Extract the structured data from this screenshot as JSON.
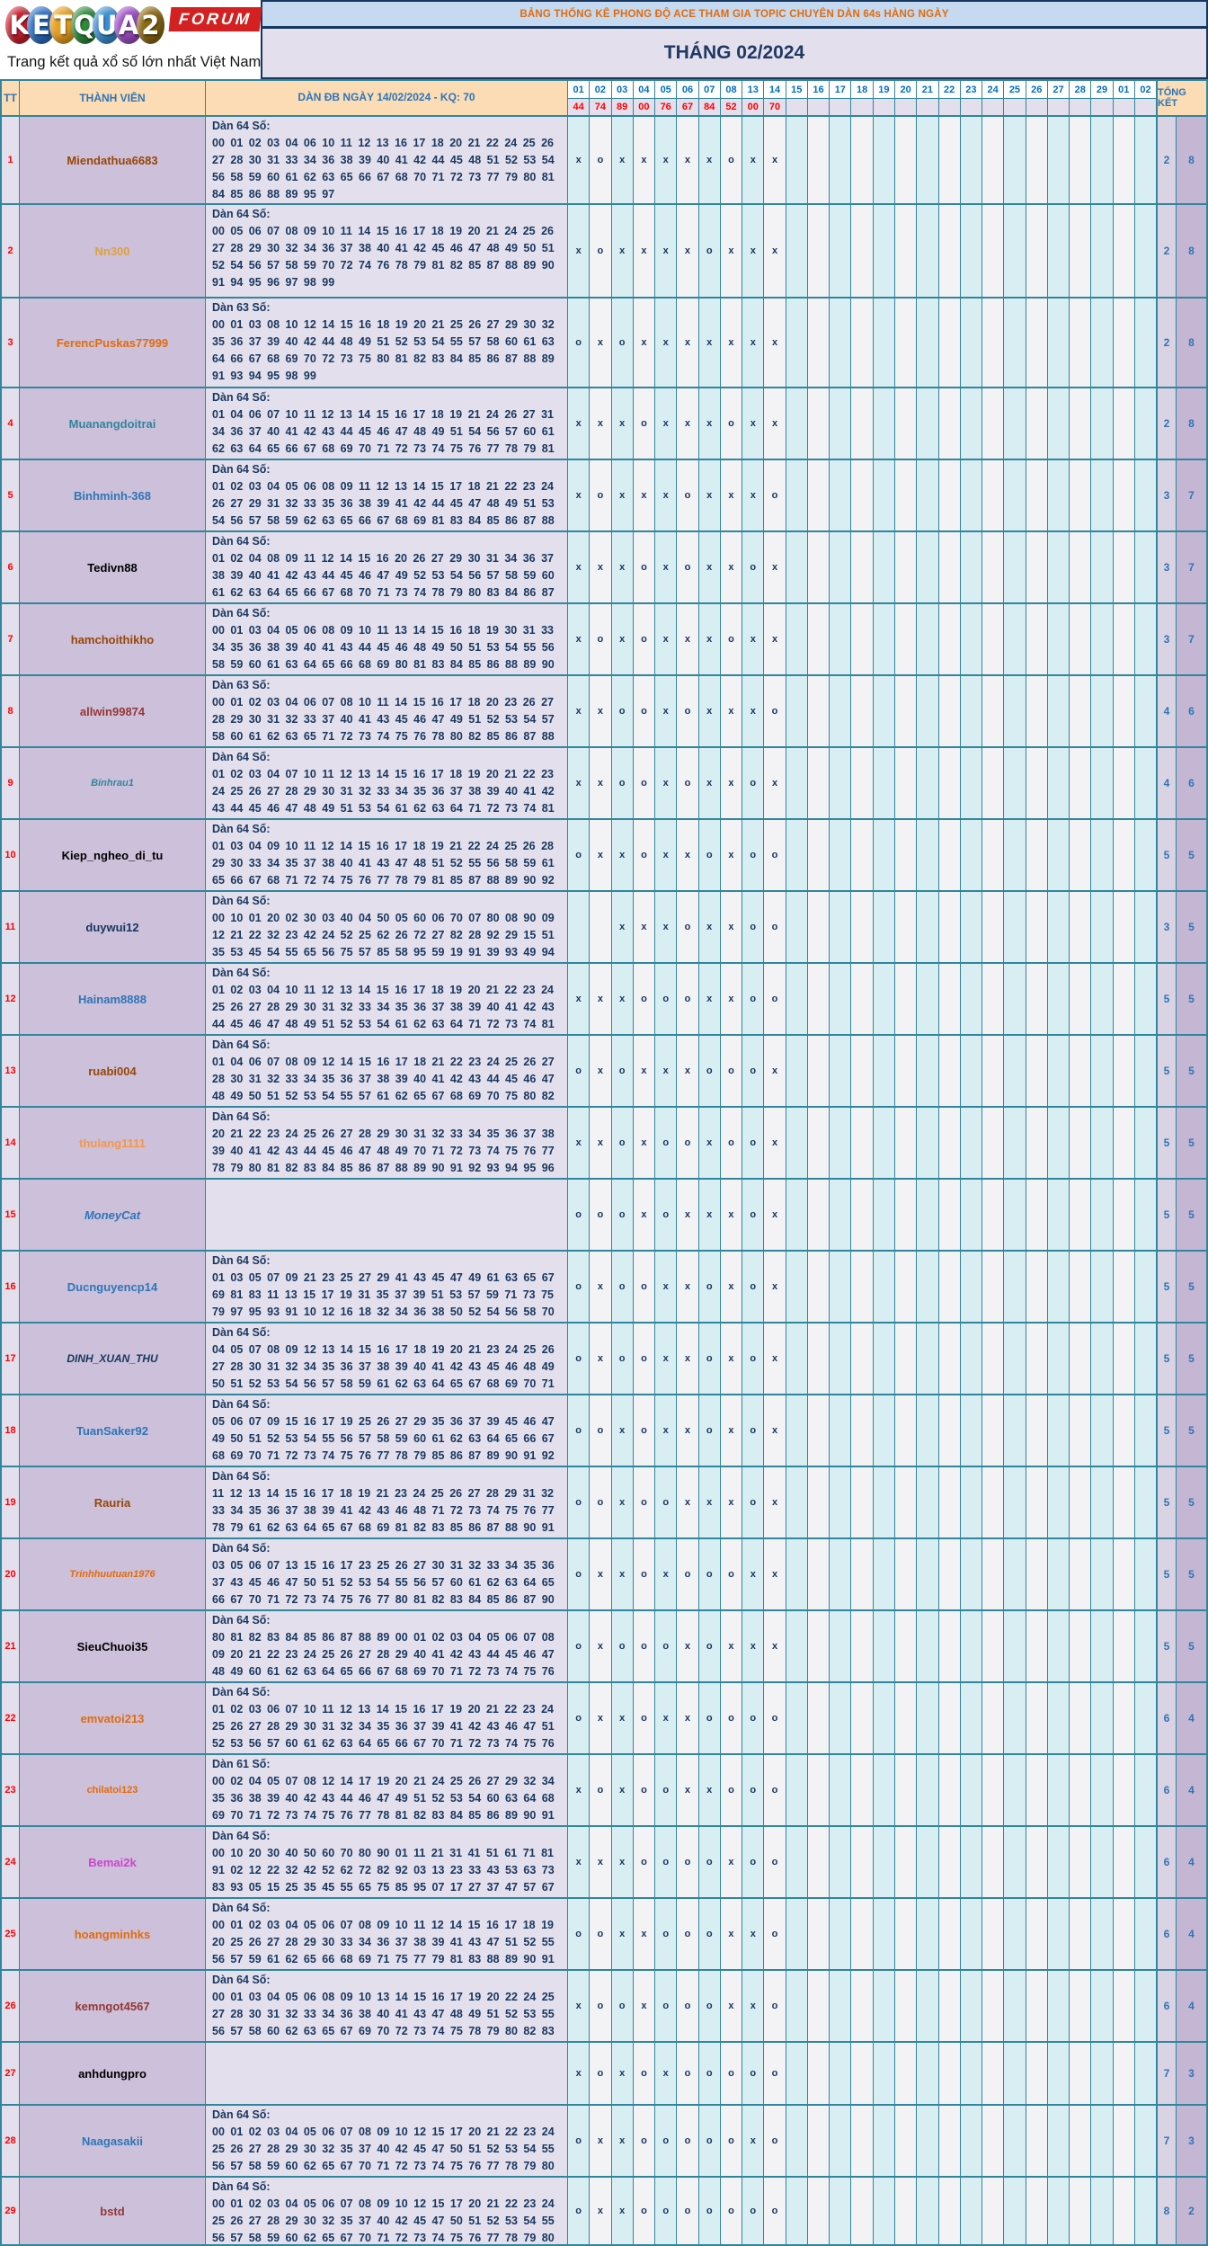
{
  "logo": {
    "letters": [
      {
        "ch": "K",
        "color": "#C8202E"
      },
      {
        "ch": "E",
        "color": "#2D6FC4"
      },
      {
        "ch": "T",
        "color": "#E8A020"
      },
      {
        "ch": "Q",
        "color": "#2E8B3A"
      },
      {
        "ch": "U",
        "color": "#3A8FD4"
      },
      {
        "ch": "A",
        "color": "#9C4FC4"
      },
      {
        "ch": "2",
        "color": "#8B6914"
      }
    ],
    "forum": "FORUM",
    "tagline": "Trang kết quả xổ số lớn nhất Việt Nam"
  },
  "header": {
    "title": "BẢNG THỐNG KÊ PHONG ĐỘ ACE THAM GIA TOPIC CHUYÊN DÀN 64s HÀNG NGÀY",
    "month": "THÁNG 02/2024"
  },
  "table": {
    "col_tt": "TT",
    "col_member": "THÀNH VIÊN",
    "col_dan": "DÀN ĐB NGÀY 14/02/2024 - KQ: 70",
    "col_total": "TỔNG KẾT",
    "days": [
      "01",
      "02",
      "03",
      "04",
      "05",
      "06",
      "07",
      "08",
      "13",
      "14",
      "15",
      "16",
      "17",
      "18",
      "19",
      "20",
      "21",
      "22",
      "23",
      "24",
      "25",
      "26",
      "27",
      "28",
      "29",
      "01",
      "02"
    ],
    "results": [
      "44",
      "74",
      "89",
      "00",
      "76",
      "67",
      "84",
      "52",
      "00",
      "70"
    ],
    "colors": {
      "grid": "#31859C",
      "navy": "#17375E",
      "title_bg": "#C5D9F1",
      "title_text": "#E26B0A",
      "month_bg": "#E4DFEC",
      "header_bg": "#FBDCB5",
      "member_bg": "#CCC0DA",
      "dan_bg": "#E4DFEC",
      "day_even_bg": "#D9EEF3",
      "day_odd_bg": "#F3F2F5",
      "total1_bg": "#D9D3E3",
      "total2_bg": "#C5B6D4",
      "result_red": "#FF0000",
      "day_header_blue": "#0070C0",
      "total_blue": "#2E75B6"
    },
    "rows": [
      {
        "tt": "1",
        "member": "Miendathua6683",
        "color": "#974706",
        "italic": false,
        "size": 13,
        "dan_label": "Dàn 64 Số:",
        "dan_numbers": "00 01 02 03 04 06 10 11 12 13 16 17 18 20 21 22 24 25 26 27 28 30 31 33 34 36 38 39 40 41 42 44 45 48 51 52 53 54 56 58 59 60 61 62 63 65 66 67 68 70 71 72 73 77 79 80 81 84 85 86 88 89 95 97",
        "marks": [
          "x",
          "o",
          "x",
          "x",
          "x",
          "x",
          "x",
          "o",
          "x",
          "x"
        ],
        "t1": "2",
        "t2": "8"
      },
      {
        "tt": "2",
        "member": "Nn300",
        "color": "#DFA13B",
        "italic": false,
        "size": 13,
        "dan_label": "Dàn 64 Số:",
        "dan_numbers": "00 05 06 07 08 09 10 11 14 15 16 17 18 19 20 21 24 25 26 27 28 29 30 32 34 36 37 38 40 41 42 45 46 47 48 49 50 51 52 54 56 57 58 59 70 72 74 76 78 79 81 82 85 87 88 89 90 91 94 95 96 97 98 99",
        "marks": [
          "x",
          "o",
          "x",
          "x",
          "x",
          "x",
          "o",
          "x",
          "x",
          "x"
        ],
        "t1": "2",
        "t2": "8"
      },
      {
        "tt": "3",
        "member": "FerencPuskas77999",
        "color": "#E26B0A",
        "italic": false,
        "size": 13,
        "dan_label": "Dàn 63 Số:",
        "dan_numbers": "00 01 03 08 10 12 14 15 16 18 19 20 21 25 26 27 29 30 32 35 36 37 39 40 42 44 48 49 51 52 53 54 55 57 58 60 61 63 64 66 67 68 69 70 72 73 75 80 81 82 83 84 85 86 87 88 89 91 93 94 95 98 99",
        "marks": [
          "o",
          "x",
          "o",
          "x",
          "x",
          "x",
          "x",
          "x",
          "x",
          "x"
        ],
        "t1": "2",
        "t2": "8"
      },
      {
        "tt": "4",
        "member": "Muanangdoitrai",
        "color": "#31859C",
        "italic": false,
        "size": 13,
        "dan_label": "Dàn 64 Số:",
        "dan_numbers": "01 04 06 07 10 11 12 13 14 15 16 17 18 19 21 24 26 27 31 34 36 37 40 41 42 43 44 45 46 47 48 49 51 54 56 57 60 61 62 63 64 65 66 67 68 69 70 71 72 73 74 75 76 77 78 79 81",
        "marks": [
          "x",
          "x",
          "x",
          "o",
          "x",
          "x",
          "x",
          "o",
          "x",
          "x"
        ],
        "t1": "2",
        "t2": "8"
      },
      {
        "tt": "5",
        "member": "Binhminh-368",
        "color": "#2E75B6",
        "italic": false,
        "size": 13,
        "dan_label": "Dàn 64 Số:",
        "dan_numbers": "01 02 03 04 05 06 08 09 11 12 13 14 15 17 18 21 22 23 24 26 27 29 31 32 33 35 36 38 39 41 42 44 45 47 48 49 51 53 54 56 57 58 59 62 63 65 66 67 68 69 81 83 84 85 86 87 88",
        "marks": [
          "x",
          "o",
          "x",
          "x",
          "x",
          "o",
          "x",
          "x",
          "x",
          "o"
        ],
        "t1": "3",
        "t2": "7"
      },
      {
        "tt": "6",
        "member": "Tedivn88",
        "color": "#000000",
        "italic": false,
        "size": 13,
        "dan_label": "Dàn 64 Số:",
        "dan_numbers": "01 02 04 08 09 11 12 14 15 16 20 26 27 29 30 31 34 36 37 38 39 40 41 42 43 44 45 46 47 49 52 53 54 56 57 58 59 60 61 62 63 64 65 66 67 68 70 71 73 74 78 79 80 83 84 86 87",
        "marks": [
          "x",
          "x",
          "x",
          "o",
          "x",
          "o",
          "x",
          "x",
          "o",
          "x"
        ],
        "t1": "3",
        "t2": "7"
      },
      {
        "tt": "7",
        "member": "hamchoithikho",
        "color": "#974706",
        "italic": false,
        "size": 13,
        "dan_label": "Dàn 64 Số:",
        "dan_numbers": "00 01 03 04 05 06 08 09 10 11 13 14 15 16 18 19 30 31 33 34 35 36 38 39 40 41 43 44 45 46 48 49 50 51 53 54 55 56 58 59 60 61 63 64 65 66 68 69 80 81 83 84 85 86 88 89 90",
        "marks": [
          "x",
          "o",
          "x",
          "o",
          "x",
          "x",
          "x",
          "o",
          "x",
          "x"
        ],
        "t1": "3",
        "t2": "7"
      },
      {
        "tt": "8",
        "member": "allwin99874",
        "color": "#953735",
        "italic": false,
        "size": 13,
        "dan_label": "Dàn 63 Số:",
        "dan_numbers": "00 01 02 03 04 06 07 08 10 11 14 15 16 17 18 20 23 26 27 28 29 30 31 32 33 37 40 41 43 45 46 47 49 51 52 53 54 57 58 60 61 62 63 65 71 72 73 74 75 76 78 80 82 85 86 87 88",
        "marks": [
          "x",
          "x",
          "o",
          "o",
          "x",
          "o",
          "x",
          "x",
          "x",
          "o"
        ],
        "t1": "4",
        "t2": "6"
      },
      {
        "tt": "9",
        "member": "Binhrau1",
        "color": "#31859C",
        "italic": true,
        "size": 11,
        "dan_label": "Dàn 64 Số:",
        "dan_numbers": "01 02 03 04 07 10 11 12 13 14 15 16 17 18 19 20 21 22 23 24 25 26 27 28 29 30 31 32 33 34 35 36 37 38 39 40 41 42 43 44 45 46 47 48 49 51 53 54 61 62 63 64 71 72 73 74 81",
        "marks": [
          "x",
          "x",
          "o",
          "o",
          "x",
          "o",
          "x",
          "x",
          "o",
          "x"
        ],
        "t1": "4",
        "t2": "6"
      },
      {
        "tt": "10",
        "member": "Kiep_ngheo_di_tu",
        "color": "#000000",
        "italic": false,
        "size": 13,
        "dan_label": "Dàn 64 Số:",
        "dan_numbers": "01 03 04 09 10 11 12 14 15 16 17 18 19 21 22 24 25 26 28 29 30 33 34 35 37 38 40 41 43 47 48 51 52 55 56 58 59 61 65 66 67 68 71 72 74 75 76 77 78 79 81 85 87 88 89 90 92",
        "marks": [
          "o",
          "x",
          "x",
          "o",
          "x",
          "x",
          "o",
          "x",
          "o",
          "o"
        ],
        "t1": "5",
        "t2": "5"
      },
      {
        "tt": "11",
        "member": "duywui12",
        "color": "#17375E",
        "italic": false,
        "size": 13,
        "dan_label": "Dàn 64 Số:",
        "dan_numbers": "00 10 01 20 02 30 03 40 04 50 05 60 06 70 07 80 08 90 09 12 21 22 32 23 42 24 52 25 62 26 72 27 82 28 92 29 15 51 35 53 45 54 55 65 56 75 57 85 58 95 59 19 91 39 93 49 94",
        "marks": [
          "",
          "",
          "x",
          "x",
          "x",
          "o",
          "x",
          "x",
          "o",
          "o"
        ],
        "t1": "3",
        "t2": "5"
      },
      {
        "tt": "12",
        "member": "Hainam8888",
        "color": "#2E75B6",
        "italic": false,
        "size": 13,
        "dan_label": "Dàn 64 Số:",
        "dan_numbers": "01 02 03 04 10 11 12 13 14 15 16 17 18 19 20 21 22 23 24 25 26 27 28 29 30 31 32 33 34 35 36 37 38 39 40 41 42 43 44 45 46 47 48 49 51 52 53 54 61 62 63 64 71 72 73 74 81",
        "marks": [
          "x",
          "x",
          "x",
          "o",
          "o",
          "o",
          "x",
          "x",
          "o",
          "o"
        ],
        "t1": "5",
        "t2": "5"
      },
      {
        "tt": "13",
        "member": "ruabi004",
        "color": "#974706",
        "italic": false,
        "size": 13,
        "dan_label": "Dàn 64 Số:",
        "dan_numbers": "01 04 06 07 08 09 12 14 15 16 17 18 21 22 23 24 25 26 27 28 30 31 32 33 34 35 36 37 38 39 40 41 42 43 44 45 46 47 48 49 50 51 52 53 54 55 57 61 62 65 67 68 69 70 75 80 82",
        "marks": [
          "o",
          "x",
          "o",
          "x",
          "x",
          "x",
          "o",
          "o",
          "o",
          "x"
        ],
        "t1": "5",
        "t2": "5"
      },
      {
        "tt": "14",
        "member": "thulang1111",
        "color": "#F79646",
        "italic": false,
        "size": 13,
        "dan_label": "Dàn 64 Số:",
        "dan_numbers": "20 21 22 23 24 25 26 27 28 29 30 31 32 33 34 35 36 37 38 39 40 41 42 43 44 45 46 47 48 49 70 71 72 73 74 75 76 77 78 79 80 81 82 83 84 85 86 87 88 89 90 91 92 93 94 95 96",
        "marks": [
          "x",
          "x",
          "o",
          "x",
          "o",
          "o",
          "x",
          "o",
          "o",
          "x"
        ],
        "t1": "5",
        "t2": "5"
      },
      {
        "tt": "15",
        "member": "MoneyCat",
        "color": "#2E75B6",
        "italic": true,
        "size": 13,
        "dan_label": "",
        "dan_numbers": "",
        "marks": [
          "o",
          "o",
          "o",
          "x",
          "o",
          "x",
          "x",
          "x",
          "o",
          "x"
        ],
        "t1": "5",
        "t2": "5"
      },
      {
        "tt": "16",
        "member": "Ducnguyencp14",
        "color": "#2E75B6",
        "italic": false,
        "size": 13,
        "dan_label": "Dàn 64 Số:",
        "dan_numbers": "01 03 05 07 09 21 23 25 27 29 41 43 45 47 49 61 63 65 67 69 81 83 11 13 15 17 19 31 35 37 39 51 53 57 59 71 73 75 79 97 95 93 91 10 12 16 18 32 34 36 38 50 52 54 56 58 70",
        "marks": [
          "o",
          "x",
          "o",
          "o",
          "x",
          "x",
          "o",
          "x",
          "o",
          "x"
        ],
        "t1": "5",
        "t2": "5"
      },
      {
        "tt": "17",
        "member": "DINH_XUAN_THU",
        "color": "#17375E",
        "italic": true,
        "size": 12,
        "dan_label": "Dàn 64 Số:",
        "dan_numbers": "04 05 07 08 09 12 13 14 15 16 17 18 19 20 21 23 24 25 26 27 28 30 31 32 34 35 36 37 38 39 40 41 42 43 45 46 48 49 50 51 52 53 54 56 57 58 59 61 62 63 64 65 67 68 69 70 71",
        "marks": [
          "o",
          "x",
          "o",
          "o",
          "x",
          "x",
          "o",
          "x",
          "o",
          "x"
        ],
        "t1": "5",
        "t2": "5"
      },
      {
        "tt": "18",
        "member": "TuanSaker92",
        "color": "#2E75B6",
        "italic": false,
        "size": 13,
        "dan_label": "Dàn 64 Số:",
        "dan_numbers": "05 06 07 09 15 16 17 19 25 26 27 29 35 36 37 39 45 46 47 49 50 51 52 53 54 55 56 57 58 59 60 61 62 63 64 65 66 67 68 69 70 71 72 73 74 75 76 77 78 79 85 86 87 89 90 91 92",
        "marks": [
          "o",
          "o",
          "x",
          "o",
          "x",
          "x",
          "o",
          "x",
          "o",
          "x"
        ],
        "t1": "5",
        "t2": "5"
      },
      {
        "tt": "19",
        "member": "Rauria",
        "color": "#974706",
        "italic": false,
        "size": 13,
        "dan_label": "Dàn 64 Số:",
        "dan_numbers": "11 12 13 14 15 16 17 18 19 21 23 24 25 26 27 28 29 31 32 33 34 35 36 37 38 39 41 42 43 46 48 71 72 73 74 75 76 77 78 79 61 62 63 64 65 67 68 69 81 82 83 85 86 87 88 90 91",
        "marks": [
          "o",
          "o",
          "x",
          "o",
          "o",
          "x",
          "x",
          "x",
          "o",
          "x"
        ],
        "t1": "5",
        "t2": "5"
      },
      {
        "tt": "20",
        "member": "Trinhhuutuan1976",
        "color": "#E26B0A",
        "italic": true,
        "size": 11,
        "dan_label": "Dàn 64 Số:",
        "dan_numbers": "03 05 06 07 13 15 16 17 23 25 26 27 30 31 32 33 34 35 36 37 43 45 46 47 50 51 52 53 54 55 56 57 60 61 62 63 64 65 66 67 70 71 72 73 74 75 76 77 80 81 82 83 84 85 86 87 90",
        "marks": [
          "o",
          "x",
          "x",
          "o",
          "x",
          "o",
          "o",
          "o",
          "x",
          "x"
        ],
        "t1": "5",
        "t2": "5"
      },
      {
        "tt": "21",
        "member": "SieuChuoi35",
        "color": "#000000",
        "italic": false,
        "size": 13,
        "dan_label": "Dàn 64 Số:",
        "dan_numbers": "80 81 82 83 84 85 86 87 88 89 00 01 02 03 04 05 06 07 08 09 20 21 22 23 24 25 26 27 28 29 40 41 42 43 44 45 46 47 48 49 60 61 62 63 64 65 66 67 68 69 70 71 72 73 74 75 76",
        "marks": [
          "o",
          "x",
          "o",
          "o",
          "o",
          "x",
          "o",
          "x",
          "x",
          "x"
        ],
        "t1": "5",
        "t2": "5"
      },
      {
        "tt": "22",
        "member": "emvatoi213",
        "color": "#E26B0A",
        "italic": false,
        "size": 13,
        "dan_label": "Dàn 64 Số:",
        "dan_numbers": "01 02 03 06 07 10 11 12 13 14 15 16 17 19 20 21 22 23 24 25 26 27 28 29 30 31 32 34 35 36 37 39 41 42 43 46 47 51 52 53 56 57 60 61 62 63 64 65 66 67 70 71 72 73 74 75 76",
        "marks": [
          "o",
          "x",
          "x",
          "o",
          "x",
          "x",
          "o",
          "o",
          "o",
          "o"
        ],
        "t1": "6",
        "t2": "4"
      },
      {
        "tt": "23",
        "member": "chilatoi123",
        "color": "#E26B0A",
        "italic": false,
        "size": 11,
        "dan_label": "Dàn 61 Số:",
        "dan_numbers": "00 02 04 05 07 08 12 14 17 19 20 21 24 25 26 27 29 32 34 35 36 38 39 40 42 43 44 46 47 49 51 52 53 54 60 63 64 68 69 70 71 72 73 74 75 76 77 78 81 82 83 84 85 86 89 90 91",
        "marks": [
          "x",
          "o",
          "x",
          "o",
          "o",
          "x",
          "x",
          "o",
          "o",
          "o"
        ],
        "t1": "6",
        "t2": "4"
      },
      {
        "tt": "24",
        "member": "Bemai2k",
        "color": "#CC44CC",
        "italic": false,
        "size": 13,
        "dan_label": "Dàn 64 Số:",
        "dan_numbers": "00 10 20 30 40 50 60 70 80 90 01 11 21 31 41 51 61 71 81 91 02 12 22 32 42 52 62 72 82 92 03 13 23 33 43 53 63 73 83 93 05 15 25 35 45 55 65 75 85 95 07 17 27 37 47 57 67",
        "marks": [
          "x",
          "x",
          "x",
          "o",
          "o",
          "o",
          "o",
          "x",
          "o",
          "o"
        ],
        "t1": "6",
        "t2": "4"
      },
      {
        "tt": "25",
        "member": "hoangminhks",
        "color": "#E26B0A",
        "italic": false,
        "size": 13,
        "dan_label": "Dàn 64 Số:",
        "dan_numbers": "00 01 02 03 04 05 06 07 08 09 10 11 12 14 15 16 17 18 19 20 25 26 27 28 29 30 33 34 36 37 38 39 41 43 47 51 52 55 56 57 59 61 62 65 66 68 69 71 75 77 79 81 83 88 89 90 91",
        "marks": [
          "o",
          "o",
          "x",
          "x",
          "o",
          "o",
          "o",
          "x",
          "x",
          "o"
        ],
        "t1": "6",
        "t2": "4"
      },
      {
        "tt": "26",
        "member": "kemngot4567",
        "color": "#953735",
        "italic": false,
        "size": 13,
        "dan_label": "Dàn 64 Số:",
        "dan_numbers": "00 01 03 04 05 06 08 09 10 13 14 15 16 17 19 20 22 24 25 27 28 30 31 32 33 34 36 38 40 41 43 47 48 49 51 52 53 55 56 57 58 60 62 63 65 67 69 70 72 73 74 75 78 79 80 82 83",
        "marks": [
          "x",
          "o",
          "o",
          "x",
          "o",
          "o",
          "o",
          "x",
          "x",
          "o"
        ],
        "t1": "6",
        "t2": "4"
      },
      {
        "tt": "27",
        "member": "anhdungpro",
        "color": "#000000",
        "italic": false,
        "size": 13,
        "dan_label": "",
        "dan_numbers": "",
        "marks": [
          "x",
          "o",
          "x",
          "o",
          "x",
          "o",
          "o",
          "o",
          "o",
          "o"
        ],
        "t1": "7",
        "t2": "3"
      },
      {
        "tt": "28",
        "member": "Naagasakii",
        "color": "#2E75B6",
        "italic": false,
        "size": 13,
        "dan_label": "Dàn 64 Số:",
        "dan_numbers": "00 01 02 03 04 05 06 07 08 09 10 12 15 17 20 21 22 23 24 25 26 27 28 29 30 32 35 37 40 42 45 47 50 51 52 53 54 55 56 57 58 59 60 62 65 67 70 71 72 73 74 75 76 77 78 79 80",
        "marks": [
          "o",
          "x",
          "x",
          "o",
          "o",
          "o",
          "o",
          "o",
          "x",
          "o"
        ],
        "t1": "7",
        "t2": "3"
      },
      {
        "tt": "29",
        "member": "bstd",
        "color": "#953735",
        "italic": false,
        "size": 13,
        "dan_label": "Dàn 64 Số:",
        "dan_numbers": "00 01 02 03 04 05 06 07 08 09 10 12 15 17 20 21 22 23 24 25 26 27 28 29 30 32 35 37 40 42 45 47 50 51 52 53 54 55 56 57 58 59 60 62 65 67 70 71 72 73 74 75 76 77 78 79 80",
        "marks": [
          "o",
          "x",
          "x",
          "o",
          "o",
          "o",
          "o",
          "o",
          "o",
          "o"
        ],
        "t1": "8",
        "t2": "2"
      }
    ]
  }
}
